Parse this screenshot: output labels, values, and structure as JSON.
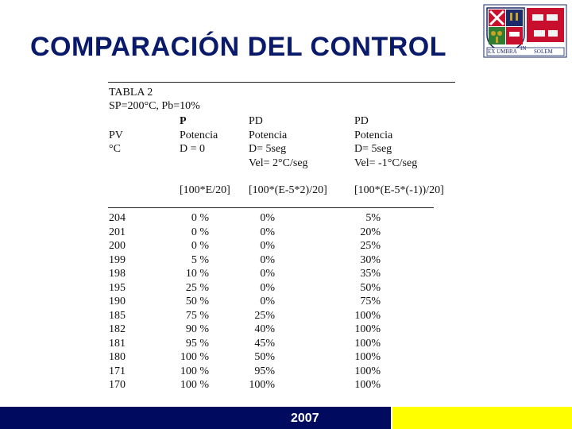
{
  "slide": {
    "title": "COMPARACIÓN DEL CONTROL",
    "year": "2007"
  },
  "logo": {
    "motto_left": "EX UMBRA",
    "motto_mid": "IN",
    "motto_right": "SOLEM"
  },
  "table": {
    "caption": "TABLA 2",
    "params": "SP=200°C, Pb=10%",
    "col_labels": [
      "P",
      "PD",
      "PD"
    ],
    "pv_label": "PV",
    "unit_label": "°C",
    "potencia": "Potencia",
    "p_d": "D = 0",
    "pd1_d": "D= 5seg",
    "pd1_vel": "Vel= 2°C/seg",
    "pd2_d": "D= 5seg",
    "pd2_vel": "Vel= -1°C/seg",
    "formulas": [
      "[100*E/20]",
      "[100*(E-5*2)/20]",
      "[100*(E-5*(-1))/20]"
    ],
    "rows": [
      [
        "204",
        "0 %",
        "0%",
        "5%"
      ],
      [
        "201",
        "0 %",
        "0%",
        "20%"
      ],
      [
        "200",
        "0 %",
        "0%",
        "25%"
      ],
      [
        "199",
        "5 %",
        "0%",
        "30%"
      ],
      [
        "198",
        "10 %",
        "0%",
        "35%"
      ],
      [
        "195",
        "25 %",
        "0%",
        "50%"
      ],
      [
        "190",
        "50 %",
        "0%",
        "75%"
      ],
      [
        "185",
        "75 %",
        "25%",
        "100%"
      ],
      [
        "182",
        "90 %",
        "40%",
        "100%"
      ],
      [
        "181",
        "95 %",
        "45%",
        "100%"
      ],
      [
        "180",
        "100 %",
        "50%",
        "100%"
      ],
      [
        "171",
        "100 %",
        "95%",
        "100%"
      ],
      [
        "170",
        "100 %",
        "100%",
        "100%"
      ]
    ]
  }
}
